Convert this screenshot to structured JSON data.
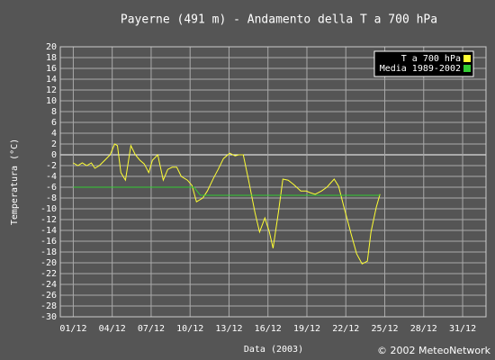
{
  "chart_data": {
    "type": "line",
    "title": "Payerne (491 m) - Andamento della T a 700 hPa",
    "x_label": "Data (2003)",
    "y_label": "Temperatura (°C)",
    "credit": "© 2002 MeteoNetwork",
    "grid": true,
    "legend_position": "upper right",
    "xlim": [
      0,
      32.8
    ],
    "ylim": [
      -30,
      20
    ],
    "xticks": [
      {
        "value": 1,
        "label": "01/12"
      },
      {
        "value": 4,
        "label": "04/12"
      },
      {
        "value": 7,
        "label": "07/12"
      },
      {
        "value": 10,
        "label": "10/12"
      },
      {
        "value": 13,
        "label": "13/12"
      },
      {
        "value": 16,
        "label": "16/12"
      },
      {
        "value": 19,
        "label": "19/12"
      },
      {
        "value": 22,
        "label": "22/12"
      },
      {
        "value": 25,
        "label": "25/12"
      },
      {
        "value": 28,
        "label": "28/12"
      },
      {
        "value": 31,
        "label": "31/12"
      }
    ],
    "yticks": [
      -30,
      -28,
      -26,
      -24,
      -22,
      -20,
      -18,
      -16,
      -14,
      -12,
      -10,
      -8,
      -6,
      -4,
      -2,
      0,
      2,
      4,
      6,
      8,
      10,
      12,
      14,
      16,
      18,
      20
    ],
    "series": [
      {
        "name": "T a 700 hPa",
        "color": "#ffff33",
        "x": [
          1.0,
          1.35,
          1.69,
          2.04,
          2.39,
          2.66,
          3.01,
          3.43,
          3.84,
          4.19,
          4.4,
          4.67,
          5.02,
          5.44,
          5.78,
          6.13,
          6.47,
          6.82,
          7.1,
          7.51,
          7.93,
          8.28,
          8.62,
          8.97,
          9.32,
          9.8,
          10.15,
          10.49,
          10.98,
          11.33,
          11.81,
          12.16,
          12.57,
          13.06,
          13.47,
          13.75,
          14.1,
          14.51,
          15.0,
          15.35,
          15.76,
          16.11,
          16.39,
          16.8,
          17.15,
          17.56,
          17.98,
          18.53,
          18.95,
          19.23,
          19.64,
          20.13,
          20.54,
          21.1,
          21.44,
          21.86,
          22.41,
          22.83,
          23.25,
          23.66,
          23.94,
          24.35,
          24.63
        ],
        "values": [
          -1.5,
          -2,
          -1.5,
          -2,
          -1.5,
          -2.5,
          -2,
          -1,
          0,
          2,
          1.7,
          -3.3,
          -4.7,
          1.7,
          0,
          -1,
          -1.7,
          -3.3,
          -1,
          0,
          -4.7,
          -2.7,
          -2.3,
          -2.3,
          -4,
          -4.7,
          -5.7,
          -8.7,
          -8,
          -6.7,
          -4.3,
          -2.7,
          -0.7,
          0.3,
          -0.2,
          0,
          0,
          -4.7,
          -10.7,
          -14.3,
          -11.7,
          -14.3,
          -17.3,
          -10.7,
          -4.5,
          -4.7,
          -5.5,
          -6.7,
          -6.7,
          -7,
          -7.3,
          -6.7,
          -6,
          -4.5,
          -5.8,
          -9.7,
          -14.7,
          -18.3,
          -20.2,
          -19.7,
          -14.3,
          -9.7,
          -7.3
        ]
      },
      {
        "name": "Media 1989-2002",
        "color": "#33cc33",
        "x": [
          1.0,
          10.3,
          10.8,
          24.63
        ],
        "values": [
          -6,
          -6,
          -7.5,
          -7.5
        ]
      }
    ]
  }
}
